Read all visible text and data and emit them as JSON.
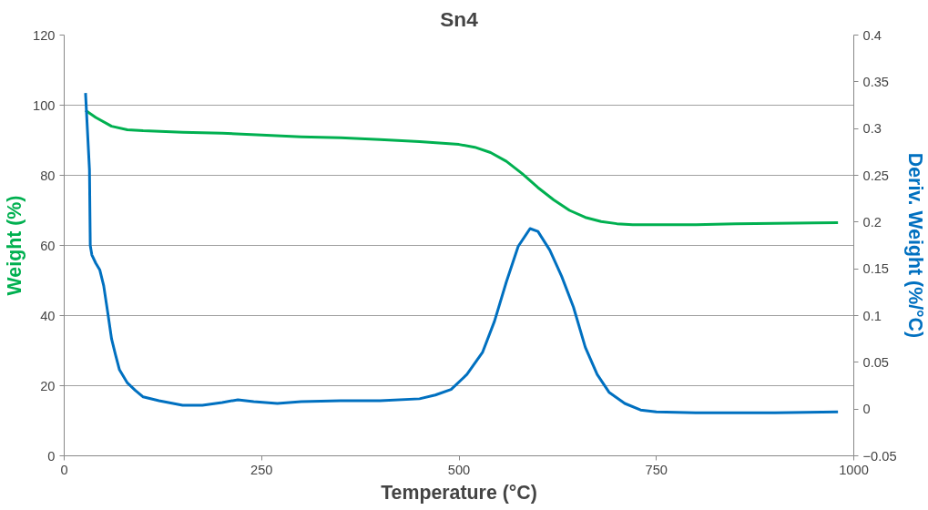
{
  "chart_data": {
    "type": "line",
    "title": "Sn4",
    "xlabel": "Temperature (°C)",
    "ylabel": "Weight (%)",
    "y2label": "Deriv. Weight (%/°C)",
    "xlim": [
      0,
      1000
    ],
    "xticks": [
      0,
      250,
      500,
      750,
      1000
    ],
    "ylim": [
      0,
      120
    ],
    "yticks": [
      0,
      20,
      40,
      60,
      80,
      100,
      120
    ],
    "y2lim": [
      -0.05,
      0.4
    ],
    "y2ticks": [
      -0.05,
      0,
      0.05,
      0.1,
      0.15,
      0.2,
      0.25,
      0.3,
      0.35,
      0.4
    ],
    "grid": "y",
    "marker": "none",
    "line_style": "solid",
    "series": [
      {
        "color": "#00b050",
        "x": [
          27,
          40,
          60,
          80,
          100,
          150,
          200,
          250,
          300,
          350,
          400,
          450,
          500,
          520,
          540,
          560,
          580,
          600,
          620,
          640,
          660,
          680,
          700,
          720,
          750,
          800,
          850,
          900,
          950,
          980
        ],
        "values": [
          98.5,
          96.5,
          94,
          93,
          92.7,
          92.3,
          92,
          91.5,
          91,
          90.7,
          90.2,
          89.6,
          88.8,
          88,
          86.5,
          84,
          80.5,
          76.5,
          73,
          70,
          68,
          66.8,
          66.2,
          65.9,
          65.9,
          65.9,
          66.2,
          66.3,
          66.4,
          66.5
        ]
      },
      {
        "color": "#0070c0",
        "axis": "y2",
        "x": [
          27,
          32,
          33,
          35,
          40,
          45,
          50,
          55,
          60,
          65,
          70,
          80,
          90,
          100,
          120,
          150,
          175,
          200,
          220,
          240,
          270,
          300,
          350,
          400,
          450,
          470,
          490,
          510,
          530,
          545,
          560,
          575,
          590,
          600,
          615,
          630,
          645,
          660,
          675,
          690,
          710,
          730,
          750,
          800,
          900,
          980
        ],
        "values": [
          0.338,
          0.256,
          0.175,
          0.165,
          0.156,
          0.149,
          0.132,
          0.104,
          0.075,
          0.058,
          0.042,
          0.028,
          0.02,
          0.013,
          0.009,
          0.004,
          0.004,
          0.007,
          0.01,
          0.008,
          0.006,
          0.008,
          0.009,
          0.009,
          0.011,
          0.015,
          0.021,
          0.037,
          0.061,
          0.094,
          0.136,
          0.174,
          0.193,
          0.19,
          0.17,
          0.142,
          0.109,
          0.066,
          0.037,
          0.018,
          0.006,
          -0.001,
          -0.003,
          -0.004,
          -0.004,
          -0.003
        ]
      }
    ]
  }
}
